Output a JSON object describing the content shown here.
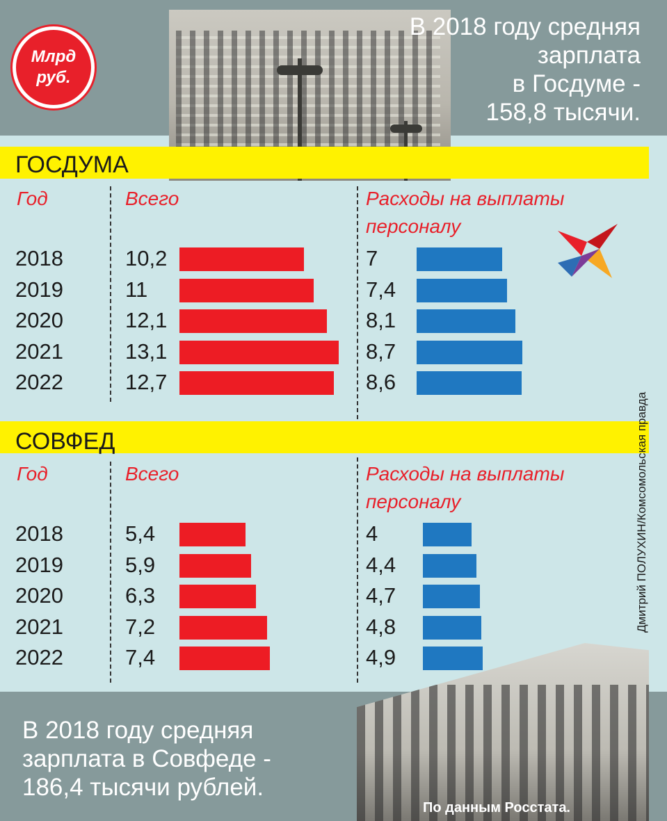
{
  "badge": {
    "unit": "Млрд\nруб."
  },
  "top_caption": "В 2018 году средняя\nзарплата\nв Госдуме -\n158,8 тысячи.",
  "bottom_caption": "В 2018 году средняя\nзарплата в Совфеде -\n186,4 тысячи рублей.",
  "credit": "Дмитрий ПОЛУХИН/Комсомольская правда",
  "source": "По данным Росстата.",
  "colors": {
    "total": "#ed1c24",
    "personnel": "#1f78c1",
    "highlight": "#fff200",
    "band": "#869a9b",
    "background": "#cde6e8"
  },
  "chart_data": [
    {
      "type": "bar",
      "title": "ГОСДУМА",
      "headers": {
        "year": "Год",
        "total": "Всего",
        "personnel": "Расходы на выплаты\nперсоналу"
      },
      "categories": [
        "2018",
        "2019",
        "2020",
        "2021",
        "2022"
      ],
      "series": [
        {
          "name": "Всего",
          "values": [
            10.2,
            11,
            12.1,
            13.1,
            12.7
          ],
          "labels": [
            "10,2",
            "11",
            "12,1",
            "13,1",
            "12,7"
          ]
        },
        {
          "name": "Расходы на выплаты персоналу",
          "values": [
            7,
            7.4,
            8.1,
            8.7,
            8.6
          ],
          "labels": [
            "7",
            "7,4",
            "8,1",
            "8,7",
            "8,6"
          ]
        }
      ]
    },
    {
      "type": "bar",
      "title": "СОВФЕД",
      "headers": {
        "year": "Год",
        "total": "Всего",
        "personnel": "Расходы на выплаты\nперсоналу"
      },
      "categories": [
        "2018",
        "2019",
        "2020",
        "2021",
        "2022"
      ],
      "series": [
        {
          "name": "Всего",
          "values": [
            5.4,
            5.9,
            6.3,
            7.2,
            7.4
          ],
          "labels": [
            "5,4",
            "5,9",
            "6,3",
            "7,2",
            "7,4"
          ]
        },
        {
          "name": "Расходы на выплаты персоналу",
          "values": [
            4,
            4.4,
            4.7,
            4.8,
            4.9
          ],
          "labels": [
            "4",
            "4,4",
            "4,7",
            "4,8",
            "4,9"
          ]
        }
      ]
    }
  ]
}
